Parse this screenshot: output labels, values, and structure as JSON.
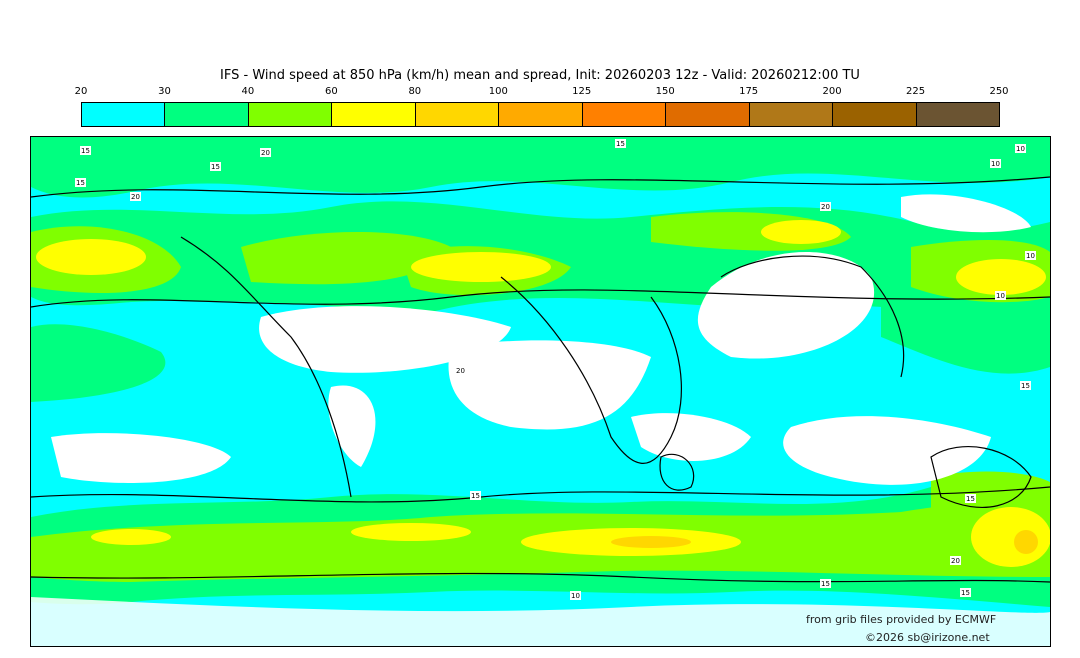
{
  "title": "IFS - Wind speed at 850 hPa (km/h) mean and spread, Init: 20260203 12z - Valid: 20260212:00 TU",
  "colorbar": {
    "ticks": [
      "20",
      "30",
      "40",
      "60",
      "80",
      "100",
      "125",
      "150",
      "175",
      "200",
      "225",
      "250"
    ],
    "colors": [
      "#00ffff",
      "#00ff80",
      "#80ff00",
      "#ffff00",
      "#ffd700",
      "#ffaa00",
      "#ff8000",
      "#e06c00",
      "#b07818",
      "#9b6200",
      "#6b5432"
    ]
  },
  "map": {
    "contour_labels": [
      "15",
      "20",
      "15",
      "15",
      "15",
      "20",
      "10",
      "10",
      "20",
      "10",
      "10",
      "15",
      "15",
      "20",
      "15",
      "15",
      "10",
      "15",
      "20"
    ]
  },
  "credits": {
    "source": "from grib files provided by ECMWF",
    "copyright": "©2026 sb@irizone.net"
  }
}
